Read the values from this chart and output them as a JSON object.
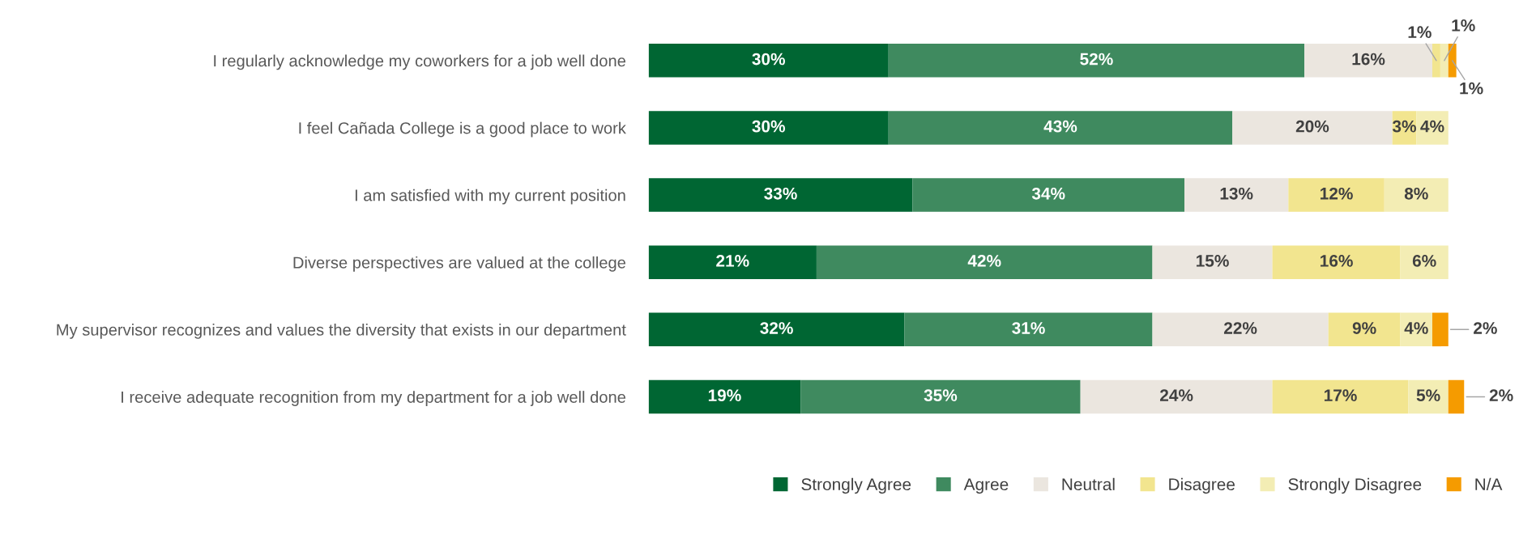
{
  "chart_data": {
    "type": "bar",
    "orientation": "horizontal",
    "stacked": true,
    "legend": "bottom",
    "grid": false,
    "tick_labels": "y",
    "categories": [
      "I regularly acknowledge my coworkers for a job well done",
      "I feel Cañada College is a good place to work",
      "I am satisfied with my current position",
      "Diverse perspectives are valued at the college",
      "My supervisor recognizes and values the diversity that exists in our department",
      "I receive adequate recognition from my department for a job well done"
    ],
    "series": [
      {
        "name": "Strongly Agree",
        "color": "#006633",
        "values": [
          30,
          30,
          33,
          21,
          32,
          19
        ],
        "value_labels": [
          "30%",
          "30%",
          "33%",
          "21%",
          "32%",
          "19%"
        ]
      },
      {
        "name": "Agree",
        "color": "#3f8a5f",
        "values": [
          52,
          43,
          34,
          42,
          31,
          35
        ],
        "value_labels": [
          "52%",
          "43%",
          "34%",
          "42%",
          "31%",
          "35%"
        ]
      },
      {
        "name": "Neutral",
        "color": "#ebe6df",
        "values": [
          16,
          20,
          13,
          15,
          22,
          24
        ],
        "value_labels": [
          "16%",
          "20%",
          "13%",
          "15%",
          "22%",
          "24%"
        ]
      },
      {
        "name": "Disagree",
        "color": "#f2e58f",
        "values": [
          1,
          3,
          12,
          16,
          9,
          17
        ],
        "value_labels": [
          "1%",
          "3%",
          "12%",
          "16%",
          "9%",
          "17%"
        ]
      },
      {
        "name": "Strongly Disagree",
        "color": "#f3edb4",
        "values": [
          1,
          4,
          8,
          6,
          4,
          5
        ],
        "value_labels": [
          "1%",
          "4%",
          "8%",
          "6%",
          "4%",
          "5%"
        ]
      },
      {
        "name": "N/A",
        "color": "#f59b00",
        "values": [
          1,
          null,
          null,
          null,
          2,
          2
        ],
        "value_labels": [
          "1%",
          null,
          null,
          null,
          "2%",
          "2%"
        ]
      }
    ]
  }
}
